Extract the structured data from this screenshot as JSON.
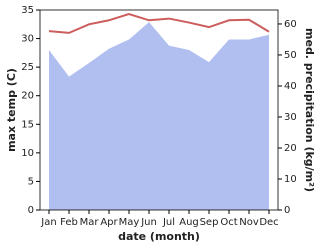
{
  "chart_data": {
    "type": "line-area",
    "xlabel": "date (month)",
    "ylabel": "max temp (C)",
    "y2label": "med. precipitation (kg/m²)",
    "categories": [
      "Jan",
      "Feb",
      "Mar",
      "Apr",
      "May",
      "Jun",
      "Jul",
      "Aug",
      "Sep",
      "Oct",
      "Nov",
      "Dec"
    ],
    "ylim": [
      0,
      35
    ],
    "yticks": [
      0,
      5,
      10,
      15,
      20,
      25,
      30,
      35
    ],
    "y2lim": [
      0,
      64.5
    ],
    "y2ticks": [
      0,
      10,
      20,
      30,
      40,
      50,
      60
    ],
    "series": [
      {
        "name": "max temp",
        "color": "#cd5c5c",
        "kind": "line",
        "values": [
          31.3,
          31.0,
          32.5,
          33.2,
          34.3,
          33.2,
          33.5,
          32.8,
          32.0,
          33.2,
          33.3,
          31.2
        ]
      },
      {
        "name": "precipitation",
        "color": "#b0bff0",
        "kind": "area",
        "axis": "y2",
        "values": [
          51.6,
          43.0,
          47.4,
          52.0,
          55.0,
          60.6,
          53.0,
          51.6,
          47.7,
          55.0,
          55.0,
          56.5
        ]
      }
    ]
  }
}
